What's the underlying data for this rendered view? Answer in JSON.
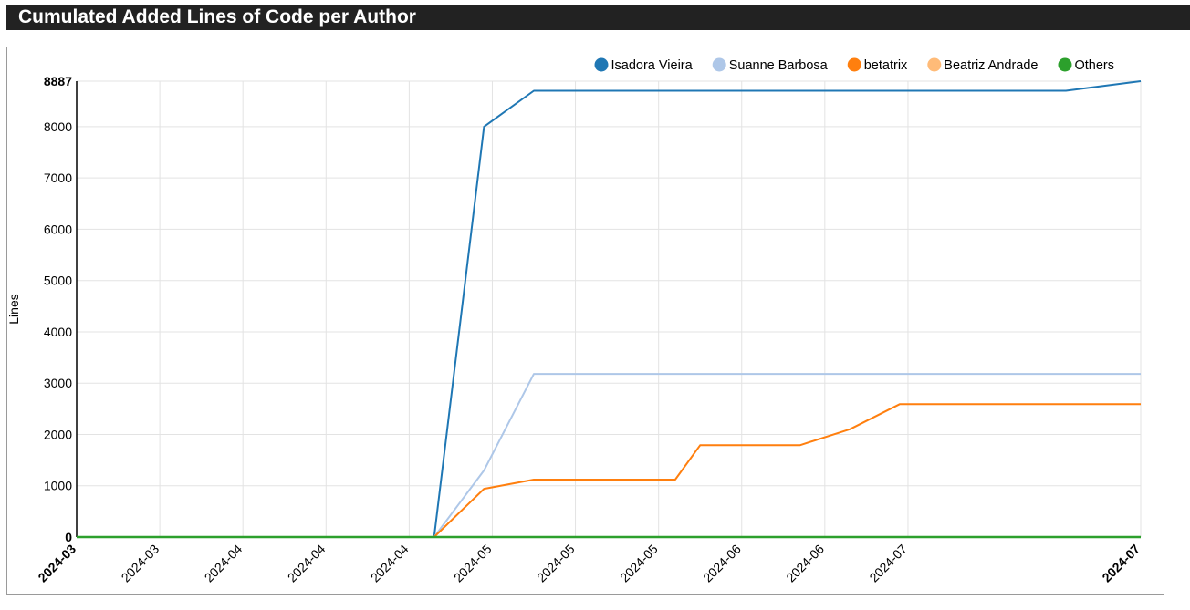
{
  "title": "Cumulated Added Lines of Code per Author",
  "colors": {
    "Isadora Vieira": "#1f77b4",
    "Suanne Barbosa": "#aec7e8",
    "betatrix": "#ff7f0e",
    "Beatriz Andrade": "#ffbb78",
    "Others": "#2ca02c"
  },
  "chart_data": {
    "type": "line",
    "title": "Cumulated Added Lines of Code per Author",
    "ylabel": "Lines",
    "xlabel": "",
    "ylim": [
      0,
      8887
    ],
    "yticks": [
      0,
      1000,
      2000,
      3000,
      4000,
      5000,
      6000,
      7000,
      8000,
      8887
    ],
    "xlim": [
      "2024-03-08",
      "2024-07-14"
    ],
    "xticks": [
      {
        "date": "2024-03-08",
        "label": "2024-03",
        "bold": true
      },
      {
        "date": "2024-03-18",
        "label": "2024-03"
      },
      {
        "date": "2024-03-28",
        "label": "2024-04"
      },
      {
        "date": "2024-04-07",
        "label": "2024-04"
      },
      {
        "date": "2024-04-17",
        "label": "2024-04"
      },
      {
        "date": "2024-04-27",
        "label": "2024-05"
      },
      {
        "date": "2024-05-07",
        "label": "2024-05"
      },
      {
        "date": "2024-05-17",
        "label": "2024-05"
      },
      {
        "date": "2024-05-27",
        "label": "2024-06"
      },
      {
        "date": "2024-06-06",
        "label": "2024-06"
      },
      {
        "date": "2024-06-16",
        "label": "2024-07"
      },
      {
        "date": "2024-07-14",
        "label": "2024-07",
        "bold": true
      }
    ],
    "grid": true,
    "legend_position": "top-right",
    "series": [
      {
        "name": "Isadora Vieira",
        "points": [
          [
            "2024-03-08",
            0
          ],
          [
            "2024-04-20",
            0
          ],
          [
            "2024-04-26",
            8000
          ],
          [
            "2024-05-02",
            8700
          ],
          [
            "2024-07-05",
            8700
          ],
          [
            "2024-07-14",
            8887
          ]
        ]
      },
      {
        "name": "Suanne Barbosa",
        "points": [
          [
            "2024-03-08",
            0
          ],
          [
            "2024-04-20",
            0
          ],
          [
            "2024-04-26",
            1300
          ],
          [
            "2024-05-02",
            3180
          ],
          [
            "2024-07-14",
            3180
          ]
        ]
      },
      {
        "name": "betatrix",
        "points": [
          [
            "2024-03-08",
            0
          ],
          [
            "2024-04-20",
            0
          ],
          [
            "2024-04-26",
            940
          ],
          [
            "2024-05-02",
            1120
          ],
          [
            "2024-05-19",
            1120
          ],
          [
            "2024-05-22",
            1790
          ],
          [
            "2024-06-03",
            1790
          ],
          [
            "2024-06-09",
            2100
          ],
          [
            "2024-06-15",
            2590
          ],
          [
            "2024-07-14",
            2590
          ]
        ]
      },
      {
        "name": "Beatriz Andrade",
        "points": [
          [
            "2024-03-08",
            0
          ],
          [
            "2024-07-14",
            0
          ]
        ]
      },
      {
        "name": "Others",
        "points": [
          [
            "2024-03-08",
            0
          ],
          [
            "2024-07-14",
            0
          ]
        ]
      }
    ]
  }
}
